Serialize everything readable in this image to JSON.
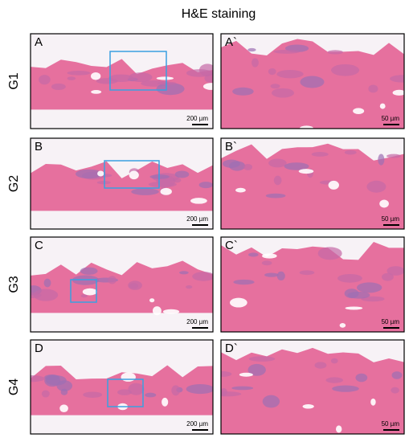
{
  "title": "H&E staining",
  "rows": [
    {
      "label": "G1",
      "panels": [
        {
          "letter": "A",
          "scale": "200 µm"
        },
        {
          "letter": "A`",
          "scale": "50 µm"
        }
      ]
    },
    {
      "label": "G2",
      "panels": [
        {
          "letter": "B",
          "scale": "200 µm"
        },
        {
          "letter": "B`",
          "scale": "50 µm"
        }
      ]
    },
    {
      "label": "G3",
      "panels": [
        {
          "letter": "C",
          "scale": "200 µm"
        },
        {
          "letter": "C`",
          "scale": "50 µm"
        }
      ]
    },
    {
      "label": "G4",
      "panels": [
        {
          "letter": "D",
          "scale": "200 µm"
        },
        {
          "letter": "D`",
          "scale": "50 µm"
        }
      ]
    }
  ]
}
